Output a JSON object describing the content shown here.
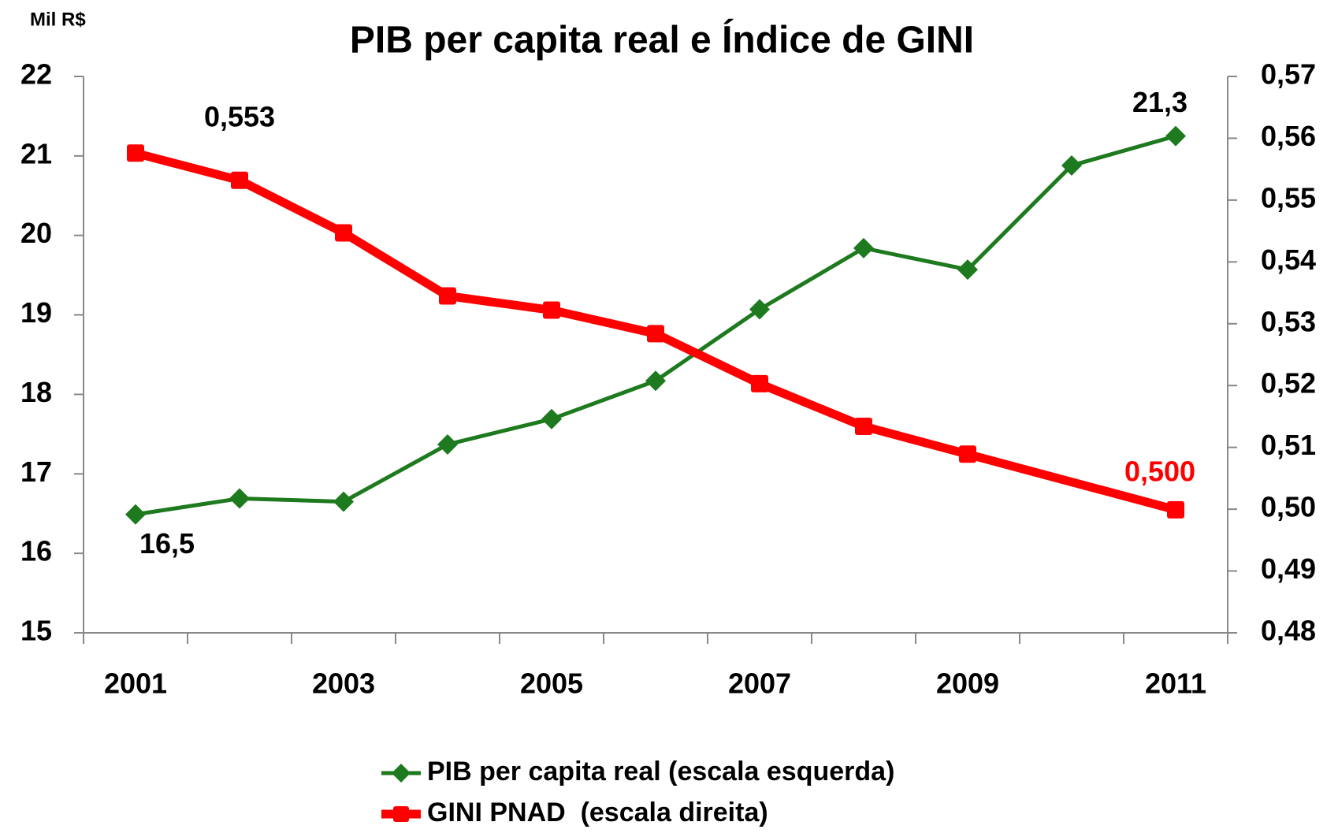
{
  "chart_data": {
    "type": "line",
    "title": "PIB per capita real e Índice de GINI",
    "y_label": "Mil R$",
    "categories": [
      "2001",
      null,
      "2003",
      null,
      "2005",
      null,
      "2007",
      null,
      "2009",
      null,
      "2011"
    ],
    "series": [
      {
        "name": "PIB per capita real (escala esquerda)",
        "color": "#1e7a1e",
        "marker": "diamond",
        "axis": "y",
        "values": [
          16.49,
          16.69,
          16.65,
          17.37,
          17.69,
          18.17,
          19.07,
          19.84,
          19.57,
          20.88,
          21.25
        ],
        "value_labels": [
          "16,5",
          null,
          null,
          null,
          null,
          null,
          null,
          null,
          null,
          null,
          "21,3"
        ]
      },
      {
        "name": "GINI PNAD  (escala direita)",
        "color": "#ff0000",
        "marker": "square",
        "axis": "y2",
        "values": [
          0.5576,
          0.5532,
          0.5447,
          0.5345,
          0.5322,
          0.5284,
          0.5203,
          0.5134,
          0.5089,
          null,
          0.4999
        ],
        "value_labels": [
          null,
          "0,553",
          null,
          null,
          null,
          null,
          null,
          null,
          null,
          null,
          "0,500"
        ]
      }
    ],
    "ylim": [
      15,
      22
    ],
    "yticks": [
      15,
      16,
      17,
      18,
      19,
      20,
      21,
      22
    ],
    "y2lim": [
      0.48,
      0.57
    ],
    "y2ticks": [
      {
        "value": 0.48,
        "label": "0,48"
      },
      {
        "value": 0.49,
        "label": "0,49"
      },
      {
        "value": 0.5,
        "label": "0,50"
      },
      {
        "value": 0.51,
        "label": "0,51"
      },
      {
        "value": 0.52,
        "label": "0,52"
      },
      {
        "value": 0.53,
        "label": "0,53"
      },
      {
        "value": 0.54,
        "label": "0,54"
      },
      {
        "value": 0.55,
        "label": "0,55"
      },
      {
        "value": 0.56,
        "label": "0,56"
      },
      {
        "value": 0.57,
        "label": "0,57"
      }
    ],
    "legend": "bottom",
    "grid": false
  }
}
